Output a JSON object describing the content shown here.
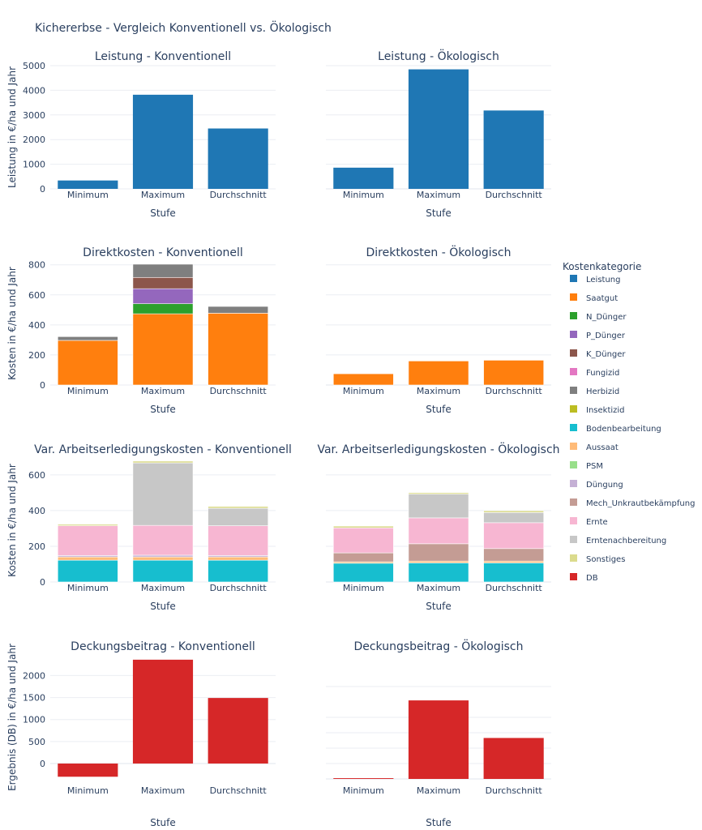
{
  "title": "Kichererbse - Vergleich Konventionell vs. Ökologisch",
  "legend": {
    "title": "Kostenkategorie",
    "items": [
      {
        "key": "Leistung",
        "label": "Leistung",
        "color": "#1f77b4"
      },
      {
        "key": "Saatgut",
        "label": "Saatgut",
        "color": "#ff7f0e"
      },
      {
        "key": "N_Duenger",
        "label": "N_Dünger",
        "color": "#2ca02c"
      },
      {
        "key": "P_Duenger",
        "label": "P_Dünger",
        "color": "#9467bd"
      },
      {
        "key": "K_Duenger",
        "label": "K_Dünger",
        "color": "#8c564b"
      },
      {
        "key": "Fungizid",
        "label": "Fungizid",
        "color": "#e377c2"
      },
      {
        "key": "Herbizid",
        "label": "Herbizid",
        "color": "#7f7f7f"
      },
      {
        "key": "Insektizid",
        "label": "Insektizid",
        "color": "#bcbd22"
      },
      {
        "key": "Bodenbearbeitung",
        "label": "Bodenbearbeitung",
        "color": "#17becf"
      },
      {
        "key": "Aussaat",
        "label": "Aussaat",
        "color": "#ffbb78"
      },
      {
        "key": "PSM",
        "label": "PSM",
        "color": "#98df8a"
      },
      {
        "key": "Duengung",
        "label": "Düngung",
        "color": "#c5b0d5"
      },
      {
        "key": "Mech_Unkrautbekaempfung",
        "label": "Mech_Unkrautbekämpfung",
        "color": "#c49c94"
      },
      {
        "key": "Ernte",
        "label": "Ernte",
        "color": "#f7b6d2"
      },
      {
        "key": "Erntenachbereitung",
        "label": "Erntenachbereitung",
        "color": "#c7c7c7"
      },
      {
        "key": "Sonstiges",
        "label": "Sonstiges",
        "color": "#dbdb8d"
      },
      {
        "key": "DB",
        "label": "DB",
        "color": "#d62728"
      }
    ]
  },
  "chart_data": [
    {
      "type": "bar",
      "title": "Leistung - Konventionell",
      "xlabel": "Stufe",
      "ylabel": "Leistung in €/ha und Jahr",
      "ylim": [
        0,
        5000
      ],
      "yticks": [
        0,
        1000,
        2000,
        3000,
        4000,
        5000
      ],
      "categories": [
        "Minimum",
        "Maximum",
        "Durchschnitt"
      ],
      "series": [
        {
          "name": "Leistung",
          "values": [
            340,
            3820,
            2450
          ]
        }
      ]
    },
    {
      "type": "bar",
      "title": "Leistung - Ökologisch",
      "xlabel": "Stufe",
      "ylabel": "",
      "ylim": [
        0,
        5000
      ],
      "yticks": [],
      "categories": [
        "Minimum",
        "Maximum",
        "Durchschnitt"
      ],
      "series": [
        {
          "name": "Leistung",
          "values": [
            860,
            4850,
            3180
          ]
        }
      ]
    },
    {
      "type": "bar",
      "stacked": true,
      "title": "Direktkosten - Konventionell",
      "xlabel": "Stufe",
      "ylabel": "Kosten in €/ha und Jahr",
      "ylim": [
        0,
        820
      ],
      "yticks": [
        0,
        200,
        400,
        600,
        800
      ],
      "categories": [
        "Minimum",
        "Maximum",
        "Durchschnitt"
      ],
      "series": [
        {
          "name": "Saatgut",
          "values": [
            297,
            474,
            478
          ]
        },
        {
          "name": "N_Duenger",
          "values": [
            0,
            67,
            0
          ]
        },
        {
          "name": "P_Duenger",
          "values": [
            0,
            100,
            0
          ]
        },
        {
          "name": "K_Duenger",
          "values": [
            0,
            75,
            0
          ]
        },
        {
          "name": "Herbizid",
          "values": [
            25,
            88,
            45
          ]
        }
      ]
    },
    {
      "type": "bar",
      "stacked": true,
      "title": "Direktkosten - Ökologisch",
      "xlabel": "Stufe",
      "ylabel": "",
      "ylim": [
        0,
        820
      ],
      "yticks": [],
      "categories": [
        "Minimum",
        "Maximum",
        "Durchschnitt"
      ],
      "series": [
        {
          "name": "Saatgut",
          "values": [
            75,
            160,
            165
          ]
        }
      ]
    },
    {
      "type": "bar",
      "stacked": true,
      "title": "Var. Arbeitserledigungskosten - Konventionell",
      "xlabel": "Stufe",
      "ylabel": "Kosten in €/ha und Jahr",
      "ylim": [
        0,
        690
      ],
      "yticks": [
        0,
        200,
        400,
        600
      ],
      "categories": [
        "Minimum",
        "Maximum",
        "Durchschnitt"
      ],
      "series": [
        {
          "name": "Bodenbearbeitung",
          "values": [
            122,
            122,
            122
          ]
        },
        {
          "name": "Aussaat",
          "values": [
            18,
            18,
            18
          ]
        },
        {
          "name": "Duengung",
          "values": [
            8,
            10,
            8
          ]
        },
        {
          "name": "Ernte",
          "values": [
            167,
            167,
            167
          ]
        },
        {
          "name": "Erntenachbereitung",
          "values": [
            0,
            350,
            98
          ]
        },
        {
          "name": "Sonstiges",
          "values": [
            8,
            10,
            10
          ]
        }
      ]
    },
    {
      "type": "bar",
      "stacked": true,
      "title": "Var. Arbeitserledigungskosten - Ökologisch",
      "xlabel": "Stufe",
      "ylabel": "",
      "ylim": [
        0,
        690
      ],
      "yticks": [],
      "categories": [
        "Minimum",
        "Maximum",
        "Durchschnitt"
      ],
      "series": [
        {
          "name": "Bodenbearbeitung",
          "values": [
            105,
            107,
            107
          ]
        },
        {
          "name": "Aussaat",
          "values": [
            8,
            10,
            10
          ]
        },
        {
          "name": "Mech_Unkrautbekaempfung",
          "values": [
            50,
            97,
            70
          ]
        },
        {
          "name": "Ernte",
          "values": [
            140,
            145,
            145
          ]
        },
        {
          "name": "Erntenachbereitung",
          "values": [
            0,
            133,
            57
          ]
        },
        {
          "name": "Sonstiges",
          "values": [
            10,
            8,
            10
          ]
        }
      ]
    },
    {
      "type": "bar",
      "title": "Deckungsbeitrag - Konventionell",
      "xlabel": "Stufe",
      "ylabel": "Ergebnis (DB) in €/ha und Jahr",
      "ylim": [
        -350,
        2450
      ],
      "yticks": [
        0,
        500,
        1000,
        1500,
        2000
      ],
      "categories": [
        "Minimum",
        "Maximum",
        "Durchschnitt"
      ],
      "series": [
        {
          "name": "DB",
          "values": [
            -300,
            2360,
            1490
          ]
        }
      ]
    },
    {
      "type": "bar",
      "title": "Deckungsbeitrag - Ökologisch",
      "xlabel": "Stufe",
      "ylabel": "",
      "ylim": [
        0,
        4000
      ],
      "yticks": [],
      "categories": [
        "Minimum",
        "Maximum",
        "Durchschnitt"
      ],
      "series": [
        {
          "name": "DB",
          "values": [
            25,
            2550,
            1330
          ]
        }
      ]
    }
  ]
}
